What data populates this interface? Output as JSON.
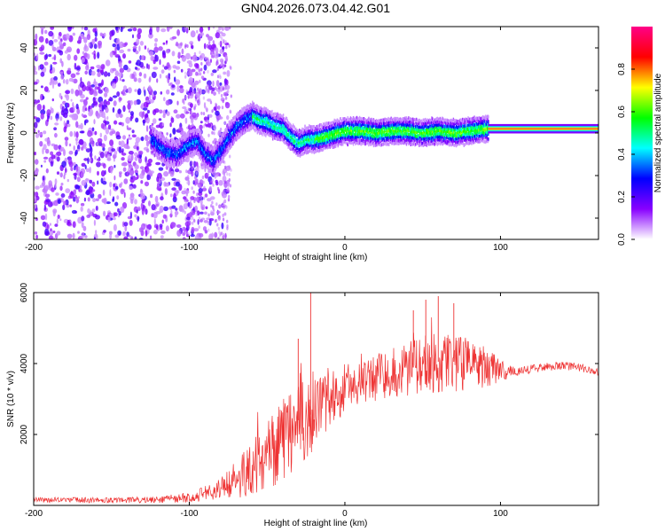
{
  "title": "GN04.2026.073.04.42.G01",
  "chart_data": [
    {
      "type": "heatmap",
      "name": "spectrogram",
      "xlabel": "Height of straight line (km)",
      "ylabel": "Frequency (Hz)",
      "xlim": [
        -200,
        163
      ],
      "ylim": [
        -50,
        50
      ],
      "x_ticks": [
        -200,
        -100,
        0,
        100
      ],
      "y_ticks": [
        -40,
        -20,
        0,
        20,
        40
      ],
      "colorbar": {
        "label": "Normalized spectral amplitude",
        "range": [
          0,
          1
        ],
        "ticks": [
          0.0,
          0.2,
          0.4,
          0.6,
          0.8
        ],
        "tick_labels": [
          "0.0",
          "0.2",
          "0.4",
          "0.6",
          "0.8"
        ],
        "colors": [
          "#ffffff",
          "#8800ff",
          "#0000ff",
          "#00ffff",
          "#00ff00",
          "#ffff00",
          "#ff0000",
          "#ff0088"
        ]
      },
      "ridge": {
        "x": [
          -125,
          -115,
          -108,
          -100,
          -95,
          -90,
          -85,
          -80,
          -75,
          -70,
          -65,
          -60,
          -55,
          -50,
          -45,
          -40,
          -35,
          -30,
          -25,
          -20,
          -15,
          -10,
          -5,
          0,
          10,
          20,
          30,
          40,
          50,
          60,
          70,
          80,
          92
        ],
        "y": [
          -3,
          -9,
          -10,
          -5,
          -4,
          -10,
          -13,
          -8,
          -2,
          3,
          6,
          8,
          6,
          5,
          3,
          2,
          -2,
          -5,
          -3,
          -3,
          -2,
          -1,
          0,
          1,
          1,
          0,
          1,
          1,
          0,
          1,
          0,
          1,
          2
        ]
      },
      "carrier_line": {
        "x_start": 92,
        "x_end": 163,
        "frequency": 2,
        "amplitude": 0.95
      }
    },
    {
      "type": "line",
      "name": "snr",
      "xlabel": "Height of straight line (km)",
      "ylabel": "SNR (10 * v/v)",
      "xlim": [
        -200,
        163
      ],
      "ylim": [
        0,
        6000
      ],
      "x_ticks": [
        -200,
        -100,
        0,
        100
      ],
      "y_ticks": [
        2000,
        4000,
        6000
      ],
      "color": "#ee3333",
      "envelope": {
        "x": [
          -200,
          -150,
          -120,
          -100,
          -85,
          -70,
          -55,
          -40,
          -30,
          -20,
          -10,
          0,
          10,
          20,
          30,
          40,
          50,
          60,
          70,
          80,
          90,
          100,
          110,
          120,
          130,
          140,
          150,
          163
        ],
        "mean": [
          150,
          150,
          160,
          230,
          380,
          700,
          1200,
          1900,
          2400,
          2600,
          3000,
          3300,
          3450,
          3600,
          3750,
          3850,
          3950,
          4050,
          4050,
          4000,
          3900,
          3800,
          3750,
          3850,
          3900,
          3950,
          3900,
          3750
        ],
        "spread": [
          80,
          80,
          90,
          150,
          250,
          500,
          900,
          1200,
          1300,
          1200,
          900,
          700,
          600,
          650,
          700,
          800,
          850,
          900,
          850,
          750,
          600,
          300,
          120,
          120,
          120,
          120,
          120,
          120
        ]
      },
      "spikes": [
        {
          "x": -22,
          "y": 6000
        },
        {
          "x": -30,
          "y": 4700
        },
        {
          "x": 52,
          "y": 5800
        },
        {
          "x": 60,
          "y": 5900
        },
        {
          "x": 70,
          "y": 5700
        },
        {
          "x": 44,
          "y": 5500
        }
      ]
    }
  ]
}
